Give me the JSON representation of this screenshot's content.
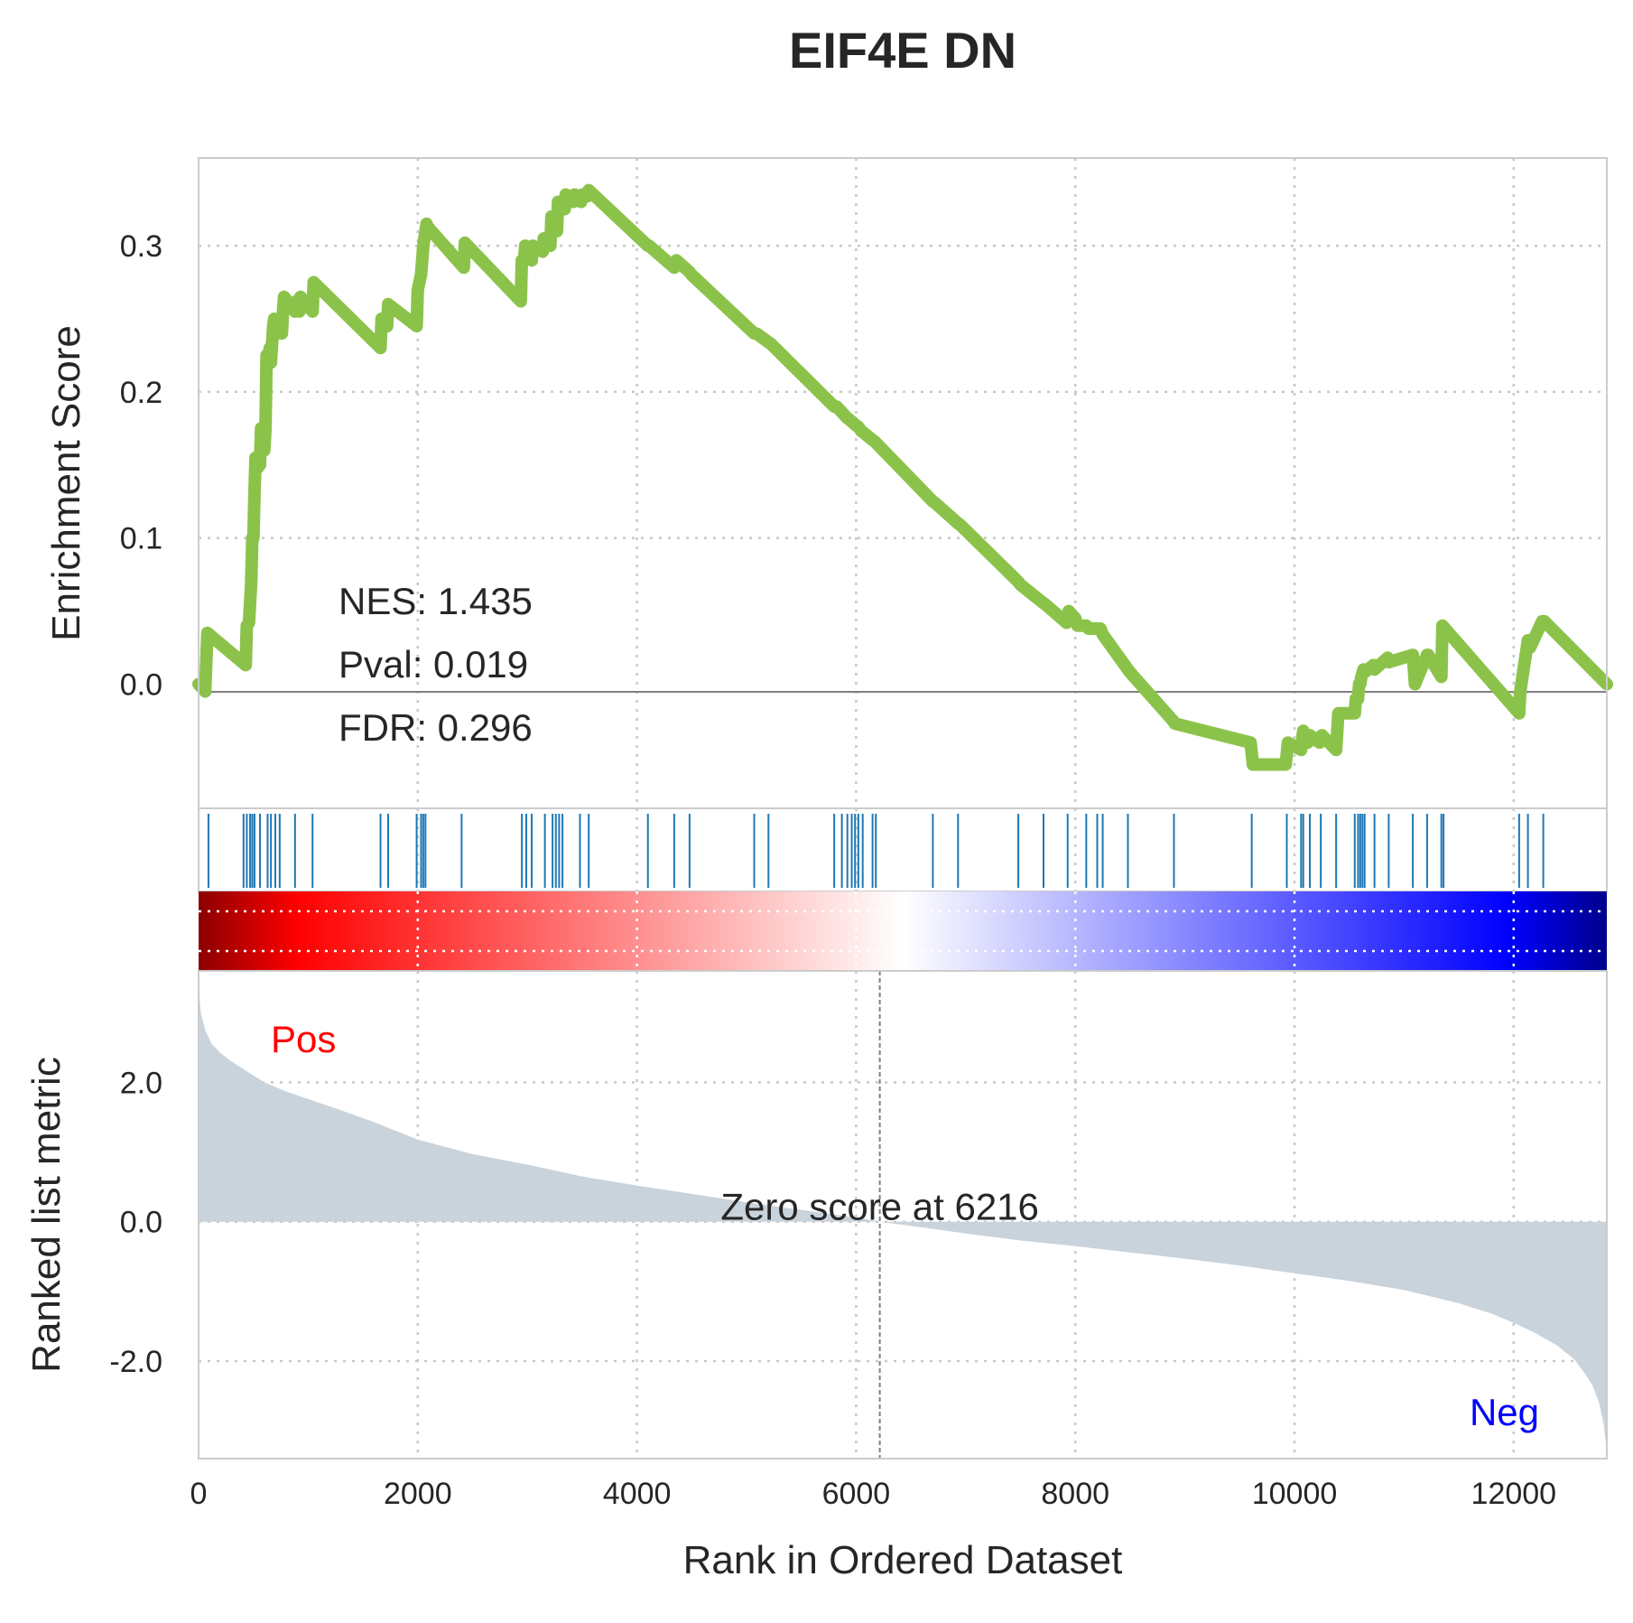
{
  "chart_data": {
    "type": "line",
    "title": "EIF4E DN",
    "xlabel": "Rank in Ordered Dataset",
    "xlim": [
      0,
      12850
    ],
    "xticks": [
      "0",
      "2000",
      "4000",
      "6000",
      "8000",
      "10000",
      "12000"
    ],
    "grid": true,
    "enrichment_panel": {
      "ylabel": "Enrichment Score",
      "ylim": [
        -0.085,
        0.36
      ],
      "yticks": [
        "0.0",
        "0.1",
        "0.2",
        "0.3"
      ],
      "line_color": "#8bc34a",
      "stats": {
        "nes": "NES: 1.435",
        "pval": "Pval: 0.019",
        "fdr": "FDR: 0.296"
      },
      "series": [
        {
          "x": [
            0,
            60,
            80,
            430,
            440,
            460,
            480,
            490,
            500,
            510,
            520,
            540,
            550,
            560,
            570,
            600,
            610,
            620,
            640,
            650,
            660,
            680,
            690,
            700,
            720,
            730,
            760,
            770,
            780,
            880,
            890,
            920,
            930,
            1040,
            1050,
            1660,
            1670,
            1720,
            1730,
            1990,
            2000,
            2030,
            2040,
            2050,
            2060,
            2070,
            2080,
            2090,
            2420,
            2430,
            2940,
            2950,
            2970,
            2980,
            3040,
            3050,
            3140,
            3150,
            3210,
            3220,
            3270,
            3280,
            3340,
            3350,
            3420,
            3430,
            3490,
            3500,
            3550,
            3560,
            4100,
            4110,
            4340,
            4360,
            4480,
            4500,
            5070,
            5090,
            5200,
            5220,
            5800,
            5820,
            5920,
            5940,
            6000,
            6020,
            6050,
            6070,
            6150,
            6170,
            6700,
            6720,
            6930,
            6950,
            7480,
            7500,
            7700,
            7720,
            7920,
            7940,
            8000,
            8020,
            8100,
            8120,
            8230,
            8250,
            8480,
            8500,
            8890,
            8910,
            9600,
            9620,
            9920,
            9940,
            10060,
            10080,
            10120,
            10140,
            10230,
            10250,
            10380,
            10400,
            10550,
            10560,
            10580,
            10590,
            10600,
            10610,
            10630,
            10640,
            10720,
            10730,
            10850,
            10860,
            11080,
            11100,
            11210,
            11220,
            11340,
            11350,
            12050,
            12060,
            12130,
            12150,
            12260,
            12280,
            12850
          ],
          "y": [
            0.0,
            -0.005,
            0.035,
            0.013,
            0.04,
            0.042,
            0.07,
            0.1,
            0.1,
            0.13,
            0.155,
            0.148,
            0.155,
            0.15,
            0.175,
            0.16,
            0.175,
            0.225,
            0.225,
            0.23,
            0.22,
            0.245,
            0.25,
            0.245,
            0.24,
            0.248,
            0.24,
            0.255,
            0.265,
            0.255,
            0.262,
            0.255,
            0.265,
            0.255,
            0.275,
            0.23,
            0.25,
            0.245,
            0.26,
            0.245,
            0.27,
            0.28,
            0.29,
            0.3,
            0.305,
            0.31,
            0.315,
            0.313,
            0.285,
            0.302,
            0.262,
            0.29,
            0.29,
            0.3,
            0.29,
            0.3,
            0.296,
            0.305,
            0.3,
            0.32,
            0.31,
            0.33,
            0.325,
            0.335,
            0.33,
            0.335,
            0.33,
            0.335,
            0.334,
            0.338,
            0.3,
            0.3,
            0.285,
            0.29,
            0.282,
            0.28,
            0.24,
            0.24,
            0.234,
            0.233,
            0.19,
            0.19,
            0.182,
            0.181,
            0.177,
            0.176,
            0.173,
            0.172,
            0.167,
            0.166,
            0.125,
            0.124,
            0.11,
            0.109,
            0.07,
            0.068,
            0.056,
            0.055,
            0.042,
            0.05,
            0.045,
            0.04,
            0.04,
            0.038,
            0.038,
            0.034,
            0.01,
            0.008,
            -0.025,
            -0.027,
            -0.04,
            -0.055,
            -0.055,
            -0.04,
            -0.045,
            -0.032,
            -0.04,
            -0.035,
            -0.04,
            -0.035,
            -0.045,
            -0.02,
            -0.02,
            -0.01,
            -0.01,
            -0.0,
            -0.0,
            0.005,
            0.01,
            0.008,
            0.013,
            0.01,
            0.018,
            0.015,
            0.02,
            -0.0,
            0.02,
            0.02,
            0.005,
            0.04,
            -0.02,
            -0.005,
            0.03,
            0.025,
            0.043,
            0.043,
            0.0
          ]
        }
      ]
    },
    "hits_panel": {
      "color": "#1f77b4",
      "positions": [
        90,
        410,
        440,
        470,
        490,
        510,
        560,
        630,
        660,
        700,
        740,
        880,
        1040,
        1660,
        1730,
        1990,
        2030,
        2050,
        2070,
        2400,
        2950,
        2990,
        3040,
        3160,
        3230,
        3260,
        3290,
        3320,
        3480,
        3560,
        4100,
        4340,
        4480,
        5070,
        5200,
        5800,
        5870,
        5920,
        5960,
        5990,
        6020,
        6060,
        6150,
        6180,
        6700,
        6930,
        7480,
        7710,
        7930,
        8100,
        8200,
        8250,
        8480,
        8900,
        9610,
        9930,
        10060,
        10080,
        10140,
        10240,
        10380,
        10550,
        10580,
        10600,
        10620,
        10640,
        10730,
        10860,
        11080,
        11210,
        11340,
        11360,
        12050,
        12130,
        12270
      ]
    },
    "colorbar": {
      "colors": [
        "#8b0000",
        "#ff0000",
        "#ffffff",
        "#0000ff",
        "#00008b"
      ]
    },
    "ranked_panel": {
      "ylabel": "Ranked list metric",
      "ylim": [
        -3.4,
        3.6
      ],
      "yticks": [
        "-2.0",
        "0.0",
        "2.0"
      ],
      "fill_color": "#c9d3dc",
      "x": [
        0,
        20,
        60,
        120,
        200,
        300,
        450,
        600,
        800,
        1000,
        1300,
        1600,
        2000,
        2500,
        3000,
        3500,
        4000,
        4500,
        5000,
        5500,
        6000,
        6216,
        6600,
        7000,
        7500,
        8000,
        8500,
        9000,
        9500,
        10000,
        10500,
        11000,
        11500,
        11800,
        12000,
        12200,
        12400,
        12550,
        12650,
        12720,
        12780,
        12820,
        12850
      ],
      "values": [
        3.4,
        3.0,
        2.75,
        2.55,
        2.42,
        2.3,
        2.15,
        2.0,
        1.87,
        1.76,
        1.6,
        1.43,
        1.18,
        0.97,
        0.82,
        0.65,
        0.52,
        0.4,
        0.28,
        0.17,
        0.06,
        0.0,
        -0.08,
        -0.17,
        -0.27,
        -0.35,
        -0.44,
        -0.53,
        -0.63,
        -0.74,
        -0.85,
        -0.98,
        -1.17,
        -1.32,
        -1.45,
        -1.6,
        -1.78,
        -1.97,
        -2.18,
        -2.35,
        -2.6,
        -2.9,
        -3.3
      ],
      "pos_label": "Pos",
      "neg_label": "Neg",
      "pos_color": "#ff0000",
      "neg_color": "#0000ff",
      "zero_rank": 6216,
      "zero_label": "Zero score at 6216"
    }
  }
}
